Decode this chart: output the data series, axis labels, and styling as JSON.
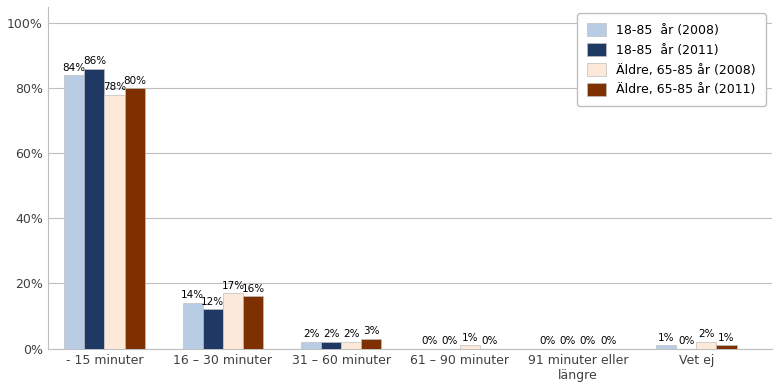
{
  "categories": [
    "- 15 minuter",
    "16 – 30 minuter",
    "31 – 60 minuter",
    "61 – 90 minuter",
    "91 minuter eller\nlängre",
    "Vet ej"
  ],
  "series": [
    {
      "label": "18-85  år (2008)",
      "color": "#b8cce4",
      "values": [
        84,
        14,
        2,
        0,
        0,
        1
      ]
    },
    {
      "label": "18-85  år (2011)",
      "color": "#1f3864",
      "values": [
        86,
        12,
        2,
        0,
        0,
        0
      ]
    },
    {
      "label": "Äldre, 65-85 år (2008)",
      "color": "#fde9d9",
      "values": [
        78,
        17,
        2,
        1,
        0,
        2
      ]
    },
    {
      "label": "Äldre, 65-85 år (2011)",
      "color": "#7f3000",
      "values": [
        80,
        16,
        3,
        0,
        0,
        1
      ]
    }
  ],
  "show_zero_label": [
    [
      false,
      false,
      false,
      true,
      true,
      false
    ],
    [
      false,
      false,
      false,
      true,
      true,
      true
    ],
    [
      false,
      false,
      false,
      false,
      true,
      false
    ],
    [
      false,
      false,
      false,
      true,
      true,
      false
    ]
  ],
  "ylim": [
    0,
    105
  ],
  "yticks": [
    0,
    20,
    40,
    60,
    80,
    100
  ],
  "yticklabels": [
    "0%",
    "20%",
    "40%",
    "60%",
    "80%",
    "100%"
  ],
  "bar_width": 0.17,
  "group_positions": [
    0.38,
    1.38,
    2.38,
    3.38,
    4.38,
    5.38
  ],
  "label_fontsize": 7.5,
  "axis_fontsize": 9,
  "tick_fontsize": 9,
  "legend_fontsize": 9,
  "background_color": "#ffffff",
  "grid_color": "#bfbfbf",
  "border_color": "#bfbfbf"
}
